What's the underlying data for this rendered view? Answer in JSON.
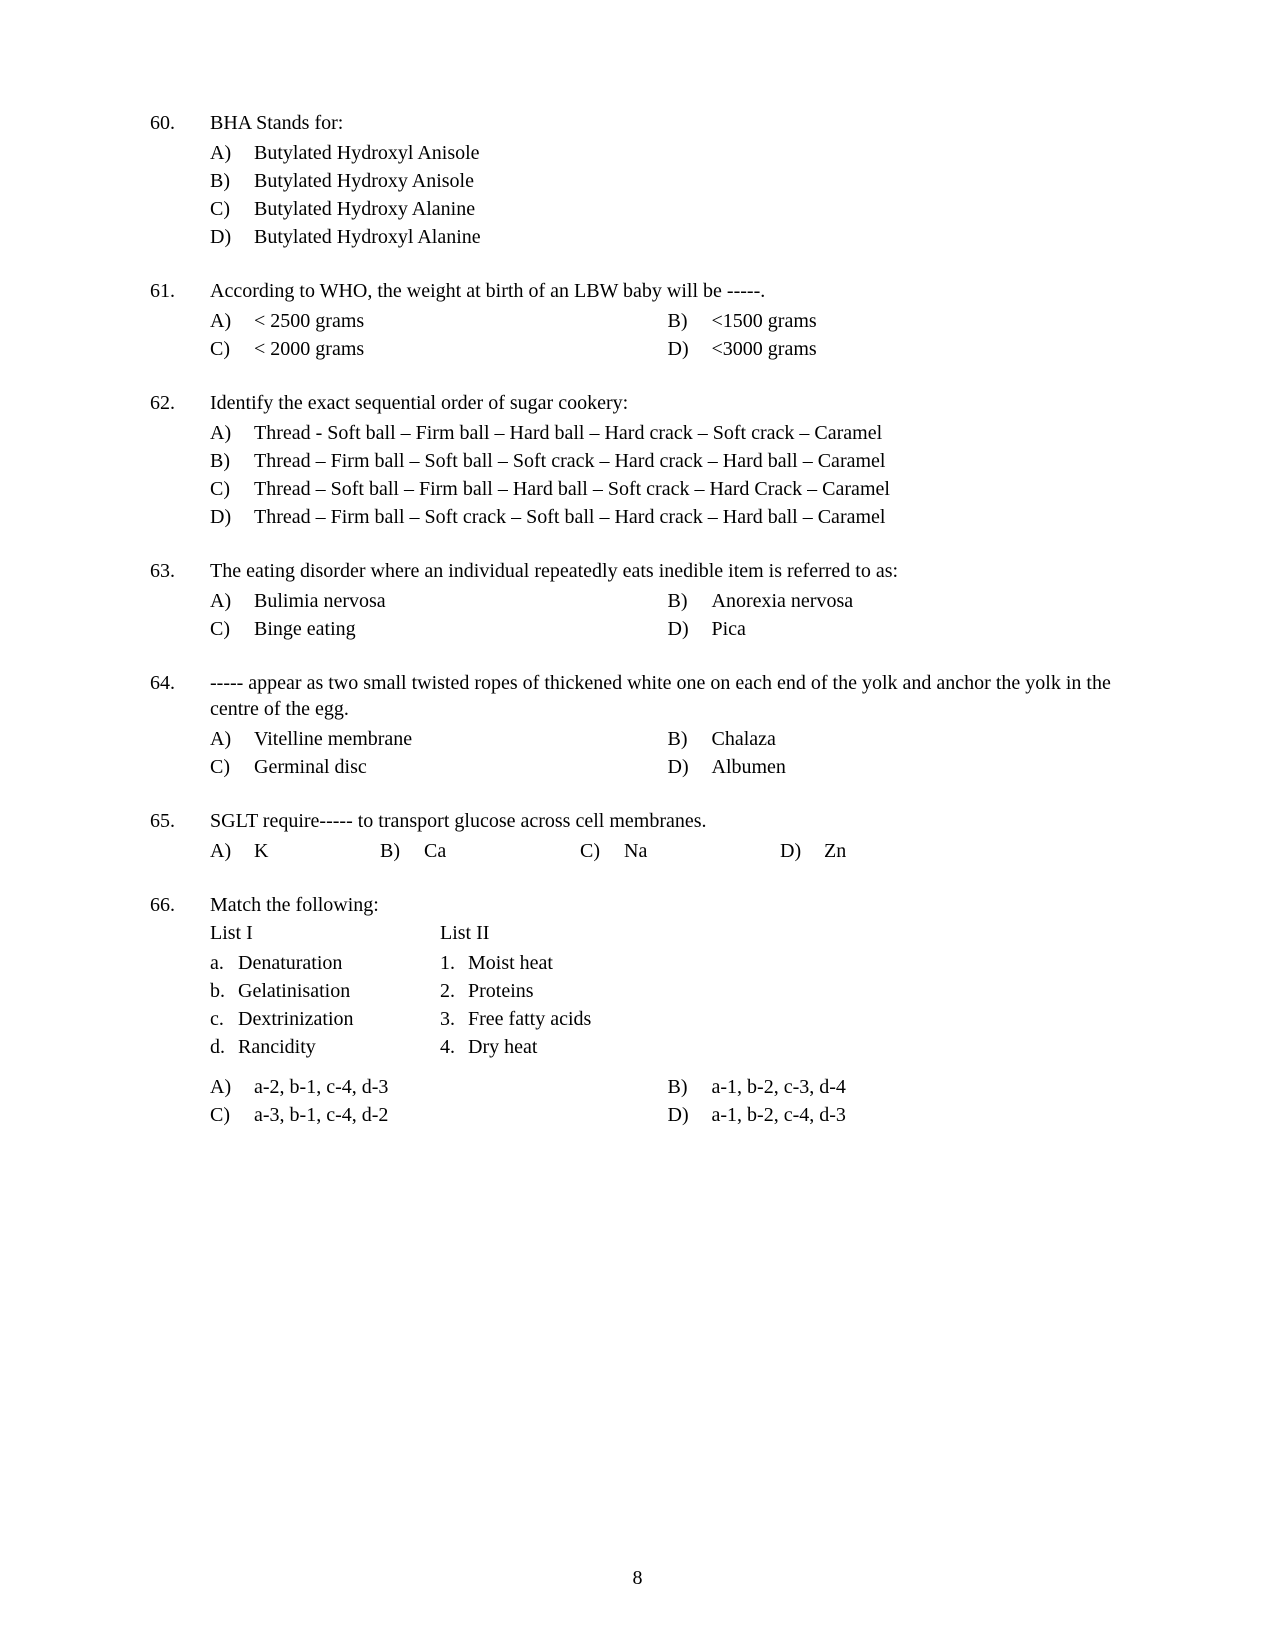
{
  "page_number": "8",
  "questions": [
    {
      "num": "60.",
      "text": "BHA Stands for:",
      "layout": "single",
      "options": [
        {
          "letter": "A)",
          "text": "Butylated Hydroxyl Anisole"
        },
        {
          "letter": "B)",
          "text": "Butylated Hydroxy Anisole"
        },
        {
          "letter": "C)",
          "text": "Butylated Hydroxy Alanine"
        },
        {
          "letter": "D)",
          "text": "Butylated Hydroxyl Alanine"
        }
      ]
    },
    {
      "num": "61.",
      "text": "According to WHO, the weight at birth of an LBW baby will be -----.",
      "layout": "two-col",
      "options": [
        {
          "letter": "A)",
          "text": "< 2500 grams"
        },
        {
          "letter": "B)",
          "text": "<1500 grams"
        },
        {
          "letter": "C)",
          "text": "< 2000 grams"
        },
        {
          "letter": "D)",
          "text": "<3000 grams"
        }
      ]
    },
    {
      "num": "62.",
      "text": "Identify the exact sequential order of sugar cookery:",
      "layout": "long",
      "options": [
        {
          "letter": "A)",
          "text": "Thread - Soft ball – Firm ball – Hard ball – Hard crack – Soft crack – Caramel"
        },
        {
          "letter": "B)",
          "text": "Thread – Firm ball – Soft ball – Soft crack – Hard crack – Hard ball – Caramel"
        },
        {
          "letter": "C)",
          "text": "Thread – Soft ball – Firm ball – Hard ball – Soft crack – Hard Crack – Caramel"
        },
        {
          "letter": "D)",
          "text": "Thread – Firm ball – Soft crack – Soft ball – Hard crack – Hard ball – Caramel"
        }
      ]
    },
    {
      "num": "63.",
      "text": "The eating disorder where an individual repeatedly eats inedible item is referred to as:",
      "layout": "two-col",
      "options": [
        {
          "letter": "A)",
          "text": "Bulimia nervosa"
        },
        {
          "letter": "B)",
          "text": "Anorexia nervosa"
        },
        {
          "letter": "C)",
          "text": "Binge eating"
        },
        {
          "letter": "D)",
          "text": "Pica"
        }
      ]
    },
    {
      "num": "64.",
      "text": "----- appear as two small twisted ropes of thickened white one on each end of the yolk and anchor the yolk in the centre of the egg.",
      "layout": "two-col",
      "options": [
        {
          "letter": "A)",
          "text": "Vitelline membrane"
        },
        {
          "letter": "B)",
          "text": "Chalaza"
        },
        {
          "letter": "C)",
          "text": "Germinal disc"
        },
        {
          "letter": "D)",
          "text": "Albumen"
        }
      ]
    },
    {
      "num": "65.",
      "text": "SGLT require----- to transport glucose across cell membranes.",
      "layout": "four-col",
      "options": [
        {
          "letter": "A)",
          "text": "K"
        },
        {
          "letter": "B)",
          "text": "Ca"
        },
        {
          "letter": "C)",
          "text": "Na"
        },
        {
          "letter": "D)",
          "text": "Zn"
        }
      ]
    },
    {
      "num": "66.",
      "text": "Match the following:",
      "layout": "match",
      "match": {
        "list1_header": "List I",
        "list2_header": "List II",
        "list1": [
          {
            "label": "a.",
            "text": "Denaturation"
          },
          {
            "label": "b.",
            "text": "Gelatinisation"
          },
          {
            "label": "c.",
            "text": "Dextrinization"
          },
          {
            "label": "d.",
            "text": "Rancidity"
          }
        ],
        "list2": [
          {
            "label": "1.",
            "text": "Moist heat"
          },
          {
            "label": "2.",
            "text": "Proteins"
          },
          {
            "label": "3.",
            "text": "Free fatty acids"
          },
          {
            "label": "4.",
            "text": "Dry heat"
          }
        ]
      },
      "options": [
        {
          "letter": "A)",
          "text": "a-2, b-1, c-4, d-3"
        },
        {
          "letter": "B)",
          "text": "a-1, b-2, c-3, d-4"
        },
        {
          "letter": "C)",
          "text": "a-3, b-1, c-4, d-2"
        },
        {
          "letter": "D)",
          "text": "a-1, b-2, c-4, d-3"
        }
      ]
    }
  ]
}
